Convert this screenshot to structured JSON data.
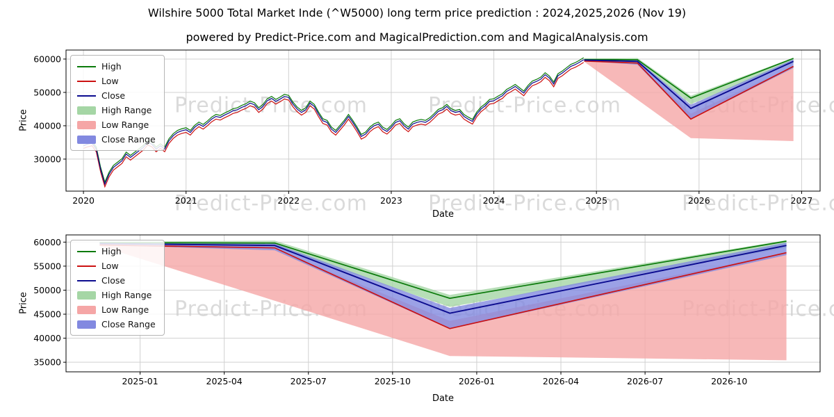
{
  "page": {
    "title": "Wilshire 5000 Total Market Inde (^W5000) long term price prediction : 2024,2025,2026 (Nov 19)",
    "subtitle": "powered by Predict-Price.com and MagicalPrediction.com and MagicalAnalysis.com"
  },
  "watermark": {
    "text": "Predict-Price.com"
  },
  "colors": {
    "high": "#0a7a0a",
    "low": "#cc1111",
    "close": "#0b0b8f",
    "high_range": "#a5d6a5",
    "low_range": "#f5a6a6",
    "close_range": "#8289e0",
    "grid": "#d0d0d0",
    "watermark": "#bdbdbd"
  },
  "legend": {
    "items": [
      {
        "key": "high",
        "label": "High",
        "swatch": "line"
      },
      {
        "key": "low",
        "label": "Low",
        "swatch": "line"
      },
      {
        "key": "close",
        "label": "Close",
        "swatch": "line"
      },
      {
        "key": "high_range",
        "label": "High Range",
        "swatch": "patch"
      },
      {
        "key": "low_range",
        "label": "Low Range",
        "swatch": "patch"
      },
      {
        "key": "close_range",
        "label": "Close Range",
        "swatch": "patch"
      }
    ]
  },
  "prediction": {
    "x": [
      2024.88,
      2025.4,
      2025.92,
      2026.92
    ],
    "x_labels": [
      "2024-11",
      "2025-05",
      "2025-12",
      "2026-12"
    ],
    "high": [
      59900,
      59800,
      48300,
      60200
    ],
    "low": [
      59400,
      58800,
      42000,
      57800
    ],
    "close": [
      59700,
      59300,
      45200,
      59300
    ],
    "high_range": {
      "top": [
        60100,
        60300,
        49000,
        60400
      ],
      "bottom": [
        59700,
        59000,
        46500,
        58800
      ]
    },
    "close_range": {
      "top": [
        59900,
        59700,
        46300,
        59900
      ],
      "bottom": [
        59400,
        58300,
        41900,
        57300
      ]
    },
    "low_range": {
      "top": [
        59600,
        58500,
        43600,
        57800
      ],
      "bottom": [
        59200,
        47800,
        36300,
        35400
      ]
    }
  },
  "chart_data": [
    {
      "type": "line",
      "name": "history-and-forecast",
      "xlabel": "Date",
      "ylabel": "Price",
      "xlim": [
        2019.83,
        2027.18
      ],
      "ylim": [
        20400,
        62700
      ],
      "xticks": [
        2020,
        2021,
        2022,
        2023,
        2024,
        2025,
        2026,
        2027
      ],
      "xtick_labels": [
        "2020",
        "2021",
        "2022",
        "2023",
        "2024",
        "2025",
        "2026",
        "2027"
      ],
      "yticks": [
        30000,
        40000,
        50000,
        60000
      ],
      "ytick_labels": [
        "30000",
        "40000",
        "50000",
        "60000"
      ],
      "grid": true,
      "legend_position": "upper-left",
      "history": {
        "x_start": 2020.0,
        "x_step": 0.0416667,
        "close": [
          34000,
          34500,
          34800,
          33000,
          27000,
          22500,
          25500,
          27500,
          28500,
          29500,
          31500,
          30500,
          31500,
          32500,
          33500,
          35000,
          34500,
          33000,
          34000,
          33000,
          35500,
          37000,
          38000,
          38500,
          38800,
          38000,
          39500,
          40500,
          39800,
          40800,
          42000,
          42800,
          42500,
          43200,
          43800,
          44500,
          44800,
          45500,
          46000,
          46800,
          46300,
          44800,
          45800,
          47500,
          48200,
          47300,
          48000,
          48800,
          48500,
          46500,
          45000,
          44000,
          44800,
          46800,
          45800,
          43500,
          41500,
          41000,
          39000,
          38000,
          39500,
          41000,
          42800,
          41000,
          39000,
          36800,
          37500,
          39000,
          40000,
          40500,
          39000,
          38300,
          39500,
          41000,
          41500,
          40000,
          39000,
          40500,
          41000,
          41300,
          41000,
          41800,
          43000,
          44300,
          44800,
          45800,
          44500,
          44000,
          44300,
          42800,
          42000,
          41300,
          43500,
          45000,
          46000,
          47300,
          47500,
          48300,
          49000,
          50300,
          51000,
          51800,
          50800,
          49800,
          51500,
          52800,
          53300,
          54000,
          55300,
          54300,
          52500,
          55000,
          55800,
          56800,
          57800,
          58300,
          59000,
          59800
        ],
        "high": [
          34600,
          35100,
          35400,
          33600,
          27600,
          23100,
          26100,
          28100,
          29100,
          30100,
          32100,
          31100,
          32100,
          33100,
          34100,
          35600,
          35100,
          33600,
          34600,
          33600,
          36100,
          37600,
          38600,
          39100,
          39400,
          38600,
          40100,
          41100,
          40400,
          41400,
          42600,
          43400,
          43100,
          43800,
          44400,
          45100,
          45400,
          46100,
          46600,
          47400,
          46900,
          45400,
          46400,
          48100,
          48800,
          47900,
          48600,
          49400,
          49100,
          47100,
          45600,
          44600,
          45400,
          47400,
          46400,
          44100,
          42100,
          41600,
          39600,
          38600,
          40100,
          41600,
          43400,
          41600,
          39600,
          37400,
          38100,
          39600,
          40600,
          41100,
          39600,
          38900,
          40100,
          41600,
          42100,
          40600,
          39600,
          41100,
          41600,
          41900,
          41600,
          42400,
          43600,
          44900,
          45400,
          46400,
          45100,
          44600,
          44900,
          43400,
          42600,
          41900,
          44100,
          45600,
          46600,
          47900,
          48100,
          48900,
          49600,
          50900,
          51600,
          52400,
          51400,
          50400,
          52100,
          53400,
          53900,
          54600,
          55900,
          54900,
          53100,
          55600,
          56400,
          57400,
          58400,
          58900,
          59600,
          60400
        ],
        "low": [
          33200,
          33700,
          34000,
          32200,
          26200,
          21700,
          24700,
          26700,
          27700,
          28700,
          30700,
          29700,
          30700,
          31700,
          32700,
          34200,
          33700,
          32200,
          33200,
          32200,
          34700,
          36200,
          37200,
          37700,
          38000,
          37200,
          38700,
          39700,
          39000,
          40000,
          41200,
          42000,
          41700,
          42400,
          43000,
          43700,
          44000,
          44700,
          45200,
          46000,
          45500,
          44000,
          45000,
          46700,
          47400,
          46500,
          47200,
          48000,
          47700,
          45700,
          44200,
          43200,
          44000,
          46000,
          45000,
          42700,
          40700,
          40200,
          38200,
          37200,
          38700,
          40200,
          42000,
          40200,
          38200,
          36000,
          36700,
          38200,
          39200,
          39700,
          38200,
          37500,
          38700,
          40200,
          40700,
          39200,
          38200,
          39700,
          40200,
          40500,
          40200,
          41000,
          42200,
          43500,
          44000,
          45000,
          43700,
          43200,
          43500,
          42000,
          41200,
          40500,
          42700,
          44200,
          45200,
          46500,
          46700,
          47500,
          48200,
          49500,
          50200,
          51000,
          50000,
          49000,
          50700,
          52000,
          52500,
          53200,
          54500,
          53500,
          51700,
          54200,
          55000,
          56000,
          57000,
          57500,
          58200,
          59000
        ]
      }
    },
    {
      "type": "line",
      "name": "forecast-detail",
      "xlabel": "Date",
      "ylabel": "Price",
      "xlim": [
        2024.78,
        2027.02
      ],
      "ylim": [
        33000,
        61500
      ],
      "xticks": [
        2025.0,
        2025.25,
        2025.5,
        2025.75,
        2026.0,
        2026.25,
        2026.5,
        2026.75
      ],
      "xtick_labels": [
        "2025-01",
        "2025-04",
        "2025-07",
        "2025-10",
        "2026-01",
        "2026-04",
        "2026-07",
        "2026-10"
      ],
      "yticks": [
        35000,
        40000,
        45000,
        50000,
        55000,
        60000
      ],
      "ytick_labels": [
        "35000",
        "40000",
        "45000",
        "50000",
        "55000",
        "60000"
      ],
      "grid": true,
      "legend_position": "upper-left"
    }
  ]
}
